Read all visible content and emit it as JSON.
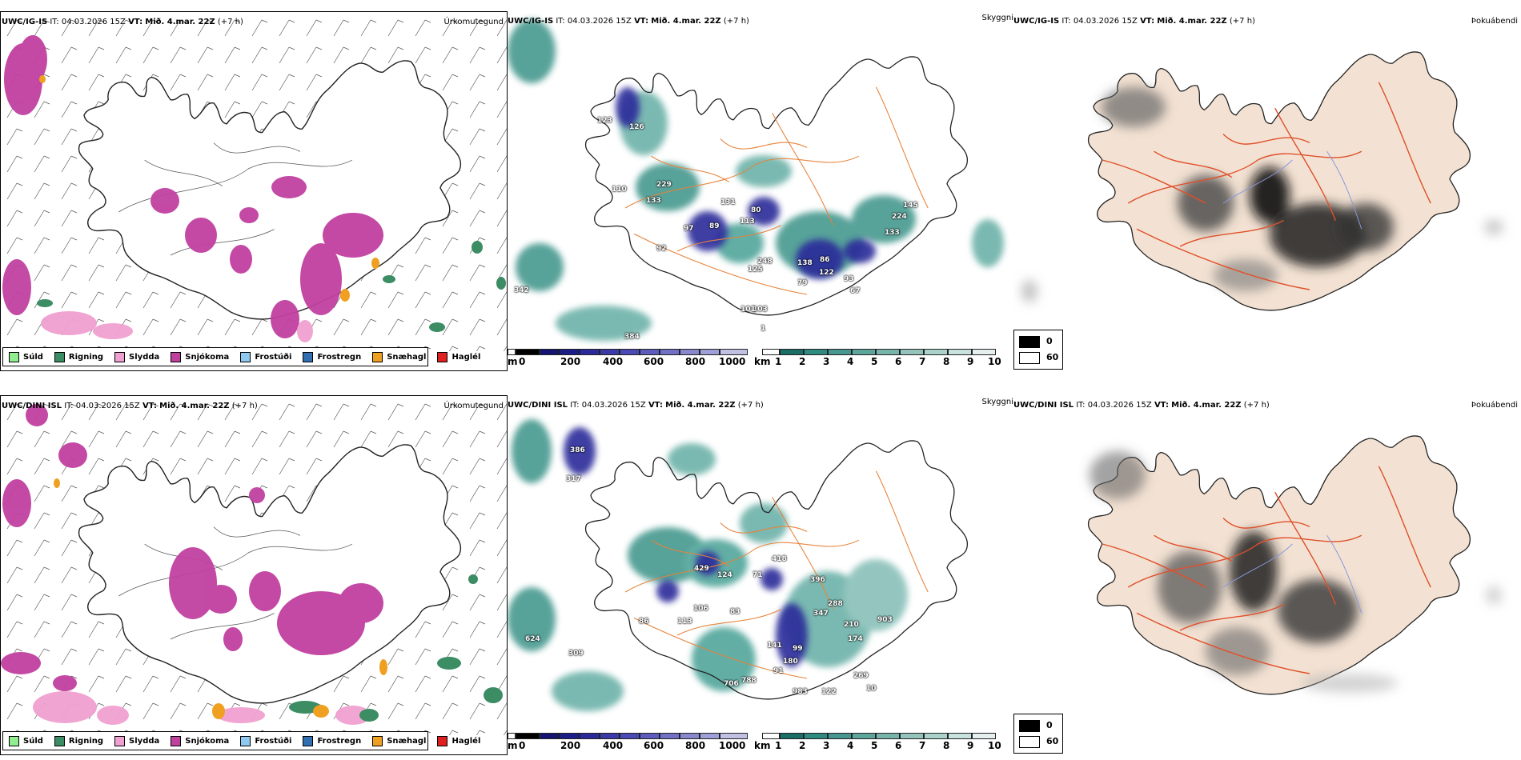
{
  "rows": [
    {
      "model": "UWC/IG-IS",
      "it_label": "IT:",
      "it_value": "04.03.2026 15Z",
      "vt_label": "VT:",
      "vt_value": "Mið. 4.mar. 22Z",
      "lead": "(+7 h)",
      "cloud_labels": [
        "229",
        "133",
        "110",
        "131",
        "97",
        "89",
        "80",
        "113",
        "92",
        "248",
        "125",
        "138",
        "86",
        "122",
        "93",
        "79",
        "67",
        "224",
        "145",
        "133",
        "103",
        "101",
        "1",
        "342",
        "384",
        "126",
        "123"
      ]
    },
    {
      "model": "UWC/DINI ISL",
      "it_label": "IT:",
      "it_value": "04.03.2026 15Z",
      "vt_label": "VT:",
      "vt_value": "Mið. 4.mar. 22Z",
      "lead": "(+7 h)",
      "cloud_labels": [
        "386",
        "317",
        "429",
        "124",
        "71",
        "418",
        "396",
        "288",
        "347",
        "106",
        "83",
        "113",
        "86",
        "141",
        "99",
        "180",
        "91",
        "706",
        "788",
        "983",
        "903",
        "210",
        "174",
        "122",
        "269",
        "10",
        "624",
        "309"
      ]
    }
  ],
  "panels": {
    "precip_type": "Úrkomutegund",
    "cloud_base": "Skyggni",
    "fog": "Þokuábendi"
  },
  "precip_legend": [
    {
      "label": "Súld",
      "color": "#90ee90"
    },
    {
      "label": "Rigning",
      "color": "#3c8c64"
    },
    {
      "label": "Slydda",
      "color": "#f0a0d0"
    },
    {
      "label": "Snjókoma",
      "color": "#c040a0"
    },
    {
      "label": "Frostúði",
      "color": "#90c8f0"
    },
    {
      "label": "Frostregn",
      "color": "#3070b0"
    },
    {
      "label": "Snæhagl",
      "color": "#f0a020"
    },
    {
      "label": "Haglél",
      "color": "#e02020"
    }
  ],
  "height_bar": {
    "unit": "m",
    "ticks": [
      "0",
      "200",
      "400",
      "600",
      "800",
      "1000"
    ]
  },
  "vis_bar": {
    "unit": "km",
    "ticks": [
      "1",
      "2",
      "3",
      "4",
      "5",
      "6",
      "7",
      "8",
      "9",
      "10"
    ]
  },
  "fog_legend": {
    "black_value": "0",
    "white_value": "60"
  },
  "colors": {
    "snow": "#c040a0",
    "rain": "#3c8c64",
    "sleet": "#f0a0d0",
    "graupel": "#f0a020",
    "teal": "#2e8b80",
    "ceiling": "#2a2a9a",
    "roads": "#e8823a",
    "land": "#f3e2d3",
    "roads_red": "#e0502a",
    "rivers": "#8899dd"
  }
}
